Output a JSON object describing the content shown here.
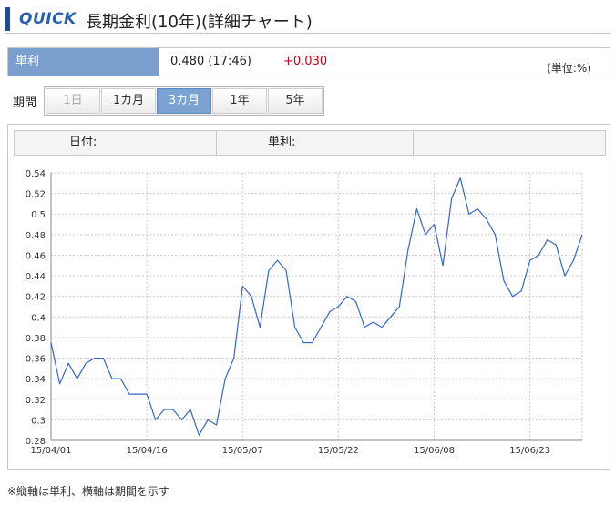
{
  "header": {
    "logo": "QUICK",
    "title": "長期金利(10年)(詳細チャート)"
  },
  "info": {
    "label": "単利",
    "value": "0.480 (17:46)",
    "change": "+0.030",
    "unit": "(単位:%)"
  },
  "period": {
    "label": "期間",
    "tabs": [
      {
        "label": "1日",
        "state": "disabled"
      },
      {
        "label": "1カ月",
        "state": "normal"
      },
      {
        "label": "3カ月",
        "state": "active"
      },
      {
        "label": "1年",
        "state": "normal"
      },
      {
        "label": "5年",
        "state": "normal"
      }
    ]
  },
  "readout": {
    "date_label": "日付:",
    "rate_label": "単利:"
  },
  "colors": {
    "line": "#3366cc",
    "grid": "#cccccc",
    "active_tab": "#7aa3d4",
    "change": "#d0021b"
  },
  "chart_data": {
    "type": "line",
    "grid": true,
    "ylim": [
      0.28,
      0.54
    ],
    "yticks": [
      "0.28",
      "0.3",
      "0.32",
      "0.34",
      "0.36",
      "0.38",
      "0.4",
      "0.42",
      "0.44",
      "0.46",
      "0.48",
      "0.5",
      "0.52",
      "0.54"
    ],
    "xlim": [
      0,
      61
    ],
    "xticks": [
      {
        "label": "15/04/01",
        "x": 0
      },
      {
        "label": "15/04/16",
        "x": 11
      },
      {
        "label": "15/05/07",
        "x": 22
      },
      {
        "label": "15/05/22",
        "x": 33
      },
      {
        "label": "15/06/08",
        "x": 44
      },
      {
        "label": "15/06/23",
        "x": 55
      }
    ],
    "series": [
      {
        "values": [
          0.375,
          0.335,
          0.355,
          0.34,
          0.355,
          0.36,
          0.36,
          0.34,
          0.34,
          0.325,
          0.325,
          0.325,
          0.3,
          0.31,
          0.31,
          0.3,
          0.31,
          0.285,
          0.3,
          0.295,
          0.34,
          0.36,
          0.43,
          0.42,
          0.39,
          0.445,
          0.455,
          0.445,
          0.39,
          0.375,
          0.375,
          0.39,
          0.405,
          0.41,
          0.42,
          0.415,
          0.39,
          0.395,
          0.39,
          0.4,
          0.41,
          0.465,
          0.505,
          0.48,
          0.49,
          0.45,
          0.515,
          0.535,
          0.5,
          0.505,
          0.495,
          0.48,
          0.435,
          0.42,
          0.425,
          0.455,
          0.46,
          0.475,
          0.47,
          0.44,
          0.455,
          0.48
        ]
      }
    ]
  },
  "footnote": "※縦軸は単利、横軸は期間を示す"
}
